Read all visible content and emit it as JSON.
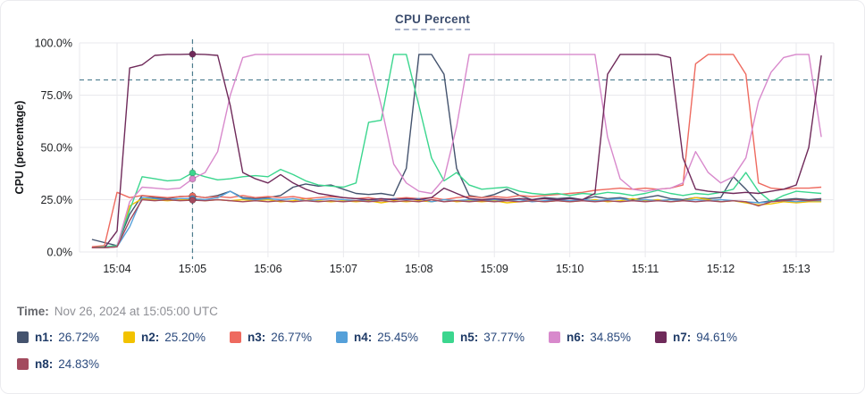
{
  "title": "CPU Percent",
  "caption": {
    "label": "Time:",
    "value": "Nov 26, 2024 at 15:05:00 UTC"
  },
  "colors": {
    "title_text": "#3d4e6f",
    "grid": "#e9e9ed",
    "tick_text": "#1c1e21",
    "crosshair": "#4c7c8e",
    "legend_label_text": "#1e3a66",
    "legend_value_text": "#2b4a7d"
  },
  "chart_data": {
    "type": "line",
    "title": "CPU Percent",
    "xlabel": "",
    "ylabel": "CPU (percentage)",
    "ylim": [
      0,
      100
    ],
    "grid": true,
    "legend_position": "bottom",
    "y_ticks": [
      {
        "pct": 100,
        "label": "100.0%"
      },
      {
        "pct": 75,
        "label": "75.0%"
      },
      {
        "pct": 50,
        "label": "50.0%"
      },
      {
        "pct": 25,
        "label": "25.0%"
      },
      {
        "pct": 0,
        "label": "0.0%"
      }
    ],
    "x_tick_labels": [
      "15:04",
      "15:05",
      "15:06",
      "15:07",
      "15:08",
      "15:09",
      "15:10",
      "15:11",
      "15:12",
      "15:13"
    ],
    "first_sample_time": "15:03:40",
    "sample_interval_seconds": 10,
    "threshold_percent": 82.3,
    "crosshair": {
      "time": "15:05:00",
      "time_label": "15:05"
    },
    "series": [
      {
        "name": "n1",
        "color": "#44536e",
        "legend_value": "26.72%",
        "values": [
          6,
          4.5,
          3,
          18,
          27,
          26,
          25.5,
          26.5,
          26.7,
          26,
          27,
          29,
          26,
          25.5,
          26,
          27,
          31,
          32.5,
          31.5,
          32,
          30,
          28,
          27.5,
          28,
          27,
          40,
          94.5,
          94.5,
          85,
          40,
          27,
          26,
          27.5,
          30,
          27,
          25,
          26,
          25.5,
          26,
          25,
          26.5,
          25.5,
          26,
          25,
          26,
          27,
          25.5,
          25,
          26,
          25.5,
          26,
          36,
          30,
          23.5,
          24.5,
          25,
          25.5,
          25,
          25.5
        ]
      },
      {
        "name": "n2",
        "color": "#f2c200",
        "legend_value": "25.20%",
        "values": [
          2,
          2,
          2.5,
          22,
          25.5,
          25,
          24.5,
          25,
          25.2,
          24.5,
          25,
          24.5,
          25,
          24.5,
          25,
          24,
          24.5,
          25.5,
          24.5,
          24,
          24.5,
          24,
          24.5,
          23.5,
          24.5,
          24,
          24.5,
          24,
          25,
          24,
          24.5,
          24,
          24.5,
          23.5,
          24,
          24.5,
          24,
          24.5,
          24,
          24.5,
          25,
          24,
          24.5,
          25.5,
          24.5,
          25,
          24,
          24.5,
          26,
          25,
          24,
          24.5,
          23.5,
          22.5,
          23,
          24,
          23.5,
          24,
          24
        ]
      },
      {
        "name": "n3",
        "color": "#ee6a5f",
        "legend_value": "26.77%",
        "values": [
          2.5,
          3,
          28.5,
          26,
          27,
          26.5,
          26,
          26.5,
          26.8,
          26,
          26.5,
          26,
          27,
          26,
          26.5,
          26,
          26.5,
          25.5,
          26,
          26.5,
          26,
          25.5,
          26,
          25,
          25.5,
          26,
          25.5,
          26,
          25,
          26,
          26.5,
          26,
          26.5,
          26,
          27,
          26.5,
          27,
          27.5,
          28,
          28.5,
          29.5,
          30,
          30.5,
          30,
          30.5,
          30,
          30.5,
          32,
          90,
          94.5,
          94.5,
          94.5,
          85,
          33,
          30.5,
          30,
          30.5,
          30.5,
          31
        ]
      },
      {
        "name": "n4",
        "color": "#55a0d9",
        "legend_value": "25.45%",
        "values": [
          2,
          2,
          2.5,
          12,
          26,
          25.5,
          25,
          25.5,
          25.5,
          25,
          26,
          29,
          25.5,
          25,
          25.5,
          25,
          25.5,
          24.5,
          25,
          25.5,
          25,
          24.5,
          25,
          24.5,
          25.5,
          25,
          25.5,
          24,
          25,
          24.5,
          25,
          24.5,
          25,
          24.5,
          25,
          24,
          24.5,
          25,
          24.5,
          25,
          24.5,
          25,
          25.5,
          24.5,
          25,
          24.5,
          25,
          24.5,
          25,
          24.5,
          25,
          24.5,
          24,
          23.5,
          24,
          24.5,
          24,
          24.5,
          24.5
        ]
      },
      {
        "name": "n5",
        "color": "#3bd68e",
        "legend_value": "37.77%",
        "values": [
          2,
          2.5,
          3,
          20,
          36,
          35,
          34,
          34.5,
          37.8,
          36,
          34.5,
          35,
          36,
          36.5,
          36,
          39.5,
          37,
          34,
          32,
          31.5,
          31,
          33,
          62,
          63,
          94.5,
          94.5,
          70,
          45,
          34,
          38,
          32,
          30,
          30.5,
          31,
          29,
          28,
          27.5,
          28,
          27,
          28,
          27.5,
          28.5,
          28,
          27,
          28,
          29.5,
          28,
          27,
          28,
          27.5,
          28.5,
          30,
          38,
          29,
          24,
          27,
          29,
          28.5,
          28
        ]
      },
      {
        "name": "n6",
        "color": "#d889cc",
        "legend_value": "34.85%",
        "values": [
          2,
          2,
          2.5,
          24,
          31,
          30.5,
          30,
          30.5,
          34.9,
          38,
          48,
          75,
          93,
          94.5,
          94.5,
          94.5,
          94.5,
          94.5,
          94.5,
          94.5,
          94.5,
          94.5,
          94.5,
          70,
          42,
          33,
          29,
          28,
          35,
          60,
          94.5,
          94.5,
          94.5,
          94.5,
          94.5,
          94.5,
          94.5,
          94.5,
          94.5,
          94.5,
          94.5,
          55,
          35,
          30,
          29,
          30,
          30.5,
          33,
          48,
          38,
          33,
          36,
          45,
          72,
          86,
          93,
          94.5,
          94.5,
          55
        ]
      },
      {
        "name": "n7",
        "color": "#6f2a5a",
        "legend_value": "94.61%",
        "values": [
          2,
          2,
          10,
          88,
          89.5,
          94,
          94.5,
          94.5,
          94.6,
          94.5,
          94,
          70,
          38,
          35,
          33,
          37,
          33,
          30,
          28,
          27,
          26,
          25.5,
          25,
          25.5,
          25,
          25.5,
          25,
          26,
          30.5,
          28,
          25.5,
          25,
          25.5,
          25,
          25.5,
          25,
          25.5,
          25,
          25.5,
          25,
          28,
          85,
          94.5,
          94.5,
          94.5,
          94.5,
          93,
          45,
          30,
          29,
          28.5,
          28,
          28.5,
          28,
          29,
          30,
          32,
          50,
          94
        ]
      },
      {
        "name": "n8",
        "color": "#a34a5e",
        "legend_value": "24.83%",
        "values": [
          2,
          2,
          2.5,
          15,
          25,
          24.5,
          25,
          24.5,
          24.8,
          24.5,
          25,
          24.5,
          24,
          24.5,
          24,
          24.5,
          24,
          24.5,
          24,
          24.5,
          24,
          24.5,
          24,
          24.5,
          24,
          24.5,
          24,
          25,
          24,
          24.5,
          24,
          24.5,
          24,
          24.5,
          24,
          24.5,
          24,
          24.5,
          24,
          24.5,
          24,
          24.5,
          24,
          24.5,
          24,
          24.5,
          24,
          24.5,
          24,
          24.5,
          24,
          24.5,
          24,
          22,
          24,
          24.5,
          25,
          24.5,
          25
        ]
      }
    ]
  }
}
